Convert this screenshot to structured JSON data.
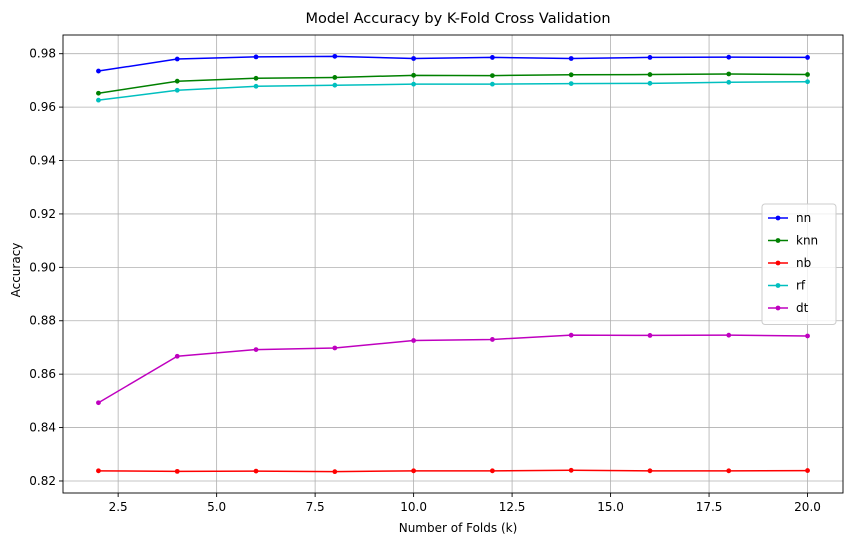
{
  "chart_data": {
    "type": "line",
    "title": "Model Accuracy by K-Fold Cross Validation",
    "xlabel": "Number of Folds (k)",
    "ylabel": "Accuracy",
    "xlim": [
      1.1,
      20.9
    ],
    "ylim": [
      0.8155,
      0.987
    ],
    "xticks": [
      2.5,
      5.0,
      7.5,
      10.0,
      12.5,
      15.0,
      17.5,
      20.0
    ],
    "xtick_labels": [
      "2.5",
      "5.0",
      "7.5",
      "10.0",
      "12.5",
      "15.0",
      "17.5",
      "20.0"
    ],
    "yticks": [
      0.82,
      0.84,
      0.86,
      0.88,
      0.9,
      0.92,
      0.94,
      0.96,
      0.98
    ],
    "ytick_labels": [
      "0.82",
      "0.84",
      "0.86",
      "0.88",
      "0.90",
      "0.92",
      "0.94",
      "0.96",
      "0.98"
    ],
    "grid": true,
    "legend_position": "center-right",
    "x": [
      2,
      4,
      6,
      8,
      10,
      12,
      14,
      16,
      18,
      20
    ],
    "series": [
      {
        "name": "nn",
        "color": "#0000ff",
        "values": [
          0.9735,
          0.978,
          0.9788,
          0.979,
          0.9782,
          0.9786,
          0.9782,
          0.9786,
          0.9787,
          0.9786
        ]
      },
      {
        "name": "knn",
        "color": "#008000",
        "values": [
          0.9652,
          0.9697,
          0.9708,
          0.9711,
          0.9719,
          0.9718,
          0.9721,
          0.9722,
          0.9724,
          0.9722
        ]
      },
      {
        "name": "nb",
        "color": "#ff0000",
        "values": [
          0.8238,
          0.8236,
          0.8237,
          0.8235,
          0.8238,
          0.8238,
          0.824,
          0.8238,
          0.8238,
          0.8239
        ]
      },
      {
        "name": "rf",
        "color": "#00bfbf",
        "values": [
          0.9626,
          0.9663,
          0.9678,
          0.9682,
          0.9686,
          0.9686,
          0.9688,
          0.9689,
          0.9693,
          0.9695
        ]
      },
      {
        "name": "dt",
        "color": "#bf00bf",
        "values": [
          0.8493,
          0.8667,
          0.8692,
          0.8698,
          0.8726,
          0.873,
          0.8746,
          0.8745,
          0.8746,
          0.8743
        ]
      }
    ]
  }
}
